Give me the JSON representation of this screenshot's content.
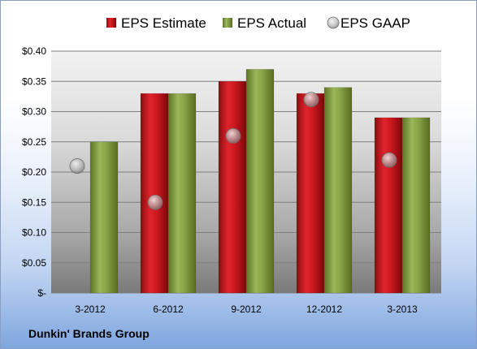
{
  "company_label": "Dunkin' Brands Group",
  "chart_data": {
    "type": "bar",
    "categories": [
      "3-2012",
      "6-2012",
      "9-2012",
      "12-2012",
      "3-2013"
    ],
    "series": [
      {
        "name": "EPS Estimate",
        "kind": "bar",
        "color": "#c0141c",
        "values": [
          null,
          0.33,
          0.35,
          0.33,
          0.29
        ]
      },
      {
        "name": "EPS Actual",
        "kind": "bar",
        "color": "#7f9a3c",
        "values": [
          0.25,
          0.33,
          0.37,
          0.34,
          0.29
        ]
      },
      {
        "name": "EPS GAAP",
        "kind": "marker",
        "color": "#a8a8a8",
        "values": [
          0.21,
          0.15,
          0.26,
          0.32,
          0.22
        ]
      }
    ],
    "ylim": [
      0,
      0.4
    ],
    "yticks": [
      0,
      0.05,
      0.1,
      0.15,
      0.2,
      0.25,
      0.3,
      0.35,
      0.4
    ],
    "ytick_labels": [
      "$-",
      "$0.05",
      "$0.10",
      "$0.15",
      "$0.20",
      "$0.25",
      "$0.30",
      "$0.35",
      "$0.40"
    ],
    "grid": true,
    "legend_position": "top"
  }
}
